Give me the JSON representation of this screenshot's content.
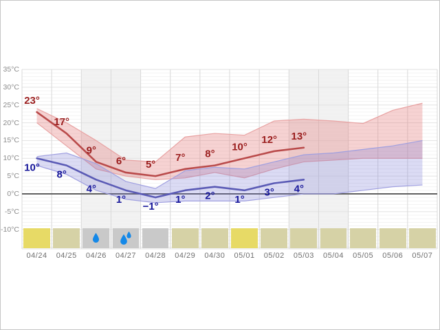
{
  "page": {
    "background": "#ffffff",
    "border_color": "#c6c6c6"
  },
  "chart_data": {
    "type": "line",
    "title": "",
    "x": {
      "categories": [
        "04/24",
        "04/25",
        "04/26",
        "04/27",
        "04/28",
        "04/29",
        "04/30",
        "05/01",
        "05/02",
        "05/03",
        "05/04",
        "05/05",
        "05/06",
        "05/07"
      ]
    },
    "y": {
      "unit": "°C",
      "tick_labels": [
        "35°C",
        "30°C",
        "25°C",
        "20°C",
        "15°C",
        "10°C",
        "5°C",
        "0°C",
        "-5°C",
        "-10°C"
      ],
      "tick_values": [
        35,
        30,
        25,
        20,
        15,
        10,
        5,
        0,
        -5,
        -10
      ],
      "ylim": [
        -15.4,
        35
      ],
      "zero_line_value": 0
    },
    "grid": {
      "minor": "#f3f3f3",
      "major": "#e2e2e2",
      "vertical": "#d8d8d8",
      "zero": "#5f5f5f"
    },
    "weekend_column_indices": [
      2,
      3,
      9,
      10
    ],
    "weekend_fill": "#f1f1f1",
    "series": [
      {
        "name": "high-temperature",
        "line_color": "#b94a4a",
        "label_color": "#9a1d1d",
        "label_offset_y": -12,
        "values": [
          23,
          17,
          9,
          6,
          5,
          7,
          8,
          10,
          12,
          13,
          null,
          null,
          null,
          null
        ],
        "labels": [
          "23°",
          "17°",
          "9°",
          "6°",
          "5°",
          "7°",
          "8°",
          "10°",
          "12°",
          "13°",
          "",
          "",
          "",
          ""
        ],
        "band": {
          "upper": [
            24,
            20,
            15,
            9.5,
            9,
            16,
            17,
            16.5,
            20.5,
            21,
            20.5,
            19.8,
            23.5,
            25.5
          ],
          "lower": [
            20,
            13.5,
            7,
            5,
            4,
            4.5,
            6,
            4.5,
            7,
            9,
            9.5,
            10,
            10,
            10
          ],
          "fill": "rgba(227,118,118,0.33)",
          "edge": "#e8a2a2"
        }
      },
      {
        "name": "low-temperature",
        "line_color": "#5a5ab5",
        "label_color": "#17179a",
        "label_offset_y": 18,
        "values": [
          10,
          8,
          4,
          1,
          -1,
          1,
          2,
          1,
          3,
          4,
          null,
          null,
          null,
          null
        ],
        "labels": [
          "10°",
          "8°",
          "4°",
          "1°",
          "−1°",
          "1°",
          "2°",
          "1°",
          "3°",
          "4°",
          "",
          "",
          "",
          ""
        ],
        "band": {
          "upper": [
            10.5,
            11.5,
            8.5,
            3.5,
            1.5,
            6.5,
            7.5,
            7,
            9,
            11,
            11.5,
            12.5,
            13.5,
            15
          ],
          "lower": [
            8,
            5.5,
            1,
            -1.5,
            -2.5,
            -2,
            -2,
            -2,
            -1,
            0,
            0,
            1,
            2,
            2.5
          ],
          "fill": "rgba(122,122,214,0.27)",
          "edge": "#9f9fe0"
        }
      }
    ],
    "daily_icons": [
      "sunny",
      "partly-cloudy",
      "light-rain",
      "rain",
      "cloudy",
      "partly-cloudy",
      "partly-cloudy",
      "sunny",
      "partly-cloudy",
      "partly-cloudy",
      "partly-cloudy",
      "partly-cloudy",
      "partly-cloudy",
      "partly-cloudy"
    ],
    "icon_colors": {
      "sunny": "#e7da66",
      "partly-cloudy": "#d6d2a6",
      "cloudy": "#c9c9c9",
      "light-rain": "#c9c9c9",
      "rain": "#c9c9c9"
    },
    "raindrop_color": "#1488e8"
  }
}
